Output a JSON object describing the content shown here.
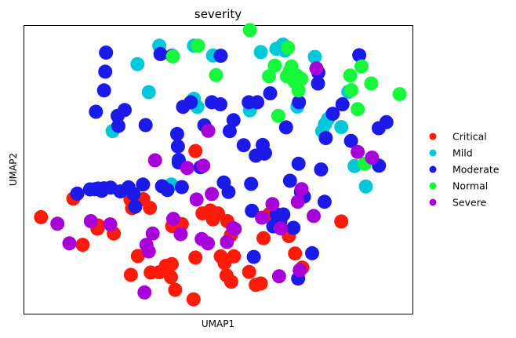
{
  "chart_data": {
    "type": "scatter",
    "title": "severity",
    "xlabel": "UMAP1",
    "ylabel": "UMAP2",
    "xlim": [
      0,
      100
    ],
    "ylim": [
      0,
      100
    ],
    "grid": false,
    "ticks_visible": false,
    "legend_position": "right",
    "series": [
      {
        "name": "Critical",
        "color": "#ff1a0a",
        "points": [
          [
            4.4,
            33.6
          ],
          [
            12.7,
            40.0
          ],
          [
            18.9,
            29.6
          ],
          [
            19.1,
            30.7
          ],
          [
            23.1,
            27.9
          ],
          [
            15.1,
            24.0
          ],
          [
            27.5,
            13.6
          ],
          [
            27.8,
            36.7
          ],
          [
            30.7,
            39.8
          ],
          [
            27.4,
            39.7
          ],
          [
            32.4,
            36.8
          ],
          [
            29.3,
            20.1
          ],
          [
            32.6,
            14.4
          ],
          [
            34.8,
            14.5
          ],
          [
            36.5,
            16.7
          ],
          [
            37.8,
            12.8
          ],
          [
            38.0,
            17.3
          ],
          [
            38.1,
            30.5
          ],
          [
            40.6,
            31.2
          ],
          [
            38.9,
            8.4
          ],
          [
            43.6,
            5.1
          ],
          [
            44.1,
            19.6
          ],
          [
            45.9,
            34.9
          ],
          [
            47.9,
            35.9
          ],
          [
            48.6,
            32.8
          ],
          [
            49.9,
            34.9
          ],
          [
            50.6,
            20.0
          ],
          [
            51.6,
            17.7
          ],
          [
            52.1,
            13.4
          ],
          [
            53.3,
            11.2
          ],
          [
            54.0,
            20.0
          ],
          [
            52.3,
            32.2
          ],
          [
            53.2,
            27.3
          ],
          [
            57.9,
            14.6
          ],
          [
            59.6,
            10.1
          ],
          [
            60.9,
            10.6
          ],
          [
            61.6,
            26.3
          ],
          [
            63.1,
            34.7
          ],
          [
            68.1,
            27.0
          ],
          [
            69.7,
            21.0
          ],
          [
            71.6,
            16.1
          ],
          [
            81.6,
            32.1
          ],
          [
            44.1,
            56.5
          ]
        ]
      },
      {
        "name": "Mild",
        "color": "#00c8d8",
        "points": [
          [
            29.2,
            86.6
          ],
          [
            32.1,
            76.9
          ],
          [
            34.8,
            93.0
          ],
          [
            43.7,
            74.6
          ],
          [
            44.6,
            71.8
          ],
          [
            43.7,
            93.0
          ],
          [
            48.6,
            89.6
          ],
          [
            58.1,
            70.6
          ],
          [
            60.9,
            90.8
          ],
          [
            64.9,
            91.9
          ],
          [
            66.6,
            93.4
          ],
          [
            67.1,
            91.3
          ],
          [
            70.3,
            71.9
          ],
          [
            74.8,
            89.1
          ],
          [
            76.7,
            63.4
          ],
          [
            77.4,
            65.8
          ],
          [
            78.2,
            67.6
          ],
          [
            81.6,
            64.8
          ],
          [
            83.4,
            77.0
          ],
          [
            85.0,
            51.3
          ],
          [
            87.9,
            44.2
          ],
          [
            37.9,
            44.9
          ],
          [
            22.8,
            63.4
          ]
        ]
      },
      {
        "name": "Moderate",
        "color": "#1b1ae8",
        "points": [
          [
            21.1,
            90.6
          ],
          [
            20.9,
            84.0
          ],
          [
            20.6,
            77.5
          ],
          [
            24.1,
            68.7
          ],
          [
            25.9,
            70.7
          ],
          [
            24.3,
            65.2
          ],
          [
            31.3,
            65.5
          ],
          [
            35.1,
            90.1
          ],
          [
            38.1,
            89.5
          ],
          [
            39.4,
            62.4
          ],
          [
            39.6,
            58.1
          ],
          [
            39.8,
            53.4
          ],
          [
            39.8,
            52.5
          ],
          [
            40.6,
            44.0
          ],
          [
            40.9,
            71.8
          ],
          [
            42.9,
            73.4
          ],
          [
            45.4,
            50.9
          ],
          [
            46.4,
            65.4
          ],
          [
            48.3,
            73.4
          ],
          [
            50.5,
            72.7
          ],
          [
            50.6,
            89.5
          ],
          [
            52.9,
            63.4
          ],
          [
            51.4,
            45.6
          ],
          [
            52.6,
            42.3
          ],
          [
            53.9,
            67.2
          ],
          [
            56.5,
            58.5
          ],
          [
            57.8,
            73.4
          ],
          [
            59.6,
            54.9
          ],
          [
            58.4,
            45.1
          ],
          [
            58.6,
            35.8
          ],
          [
            59.1,
            19.8
          ],
          [
            60.0,
            73.4
          ],
          [
            61.4,
            58.6
          ],
          [
            61.8,
            55.6
          ],
          [
            62.0,
            55.8
          ],
          [
            63.3,
            76.5
          ],
          [
            64.1,
            30.4
          ],
          [
            65.0,
            34.5
          ],
          [
            66.7,
            34.5
          ],
          [
            65.9,
            32.0
          ],
          [
            67.4,
            64.7
          ],
          [
            68.4,
            46.2
          ],
          [
            69.3,
            29.9
          ],
          [
            70.6,
            52.1
          ],
          [
            71.2,
            42.4
          ],
          [
            70.7,
            73.4
          ],
          [
            72.0,
            40.7
          ],
          [
            70.5,
            12.3
          ],
          [
            74.1,
            21.1
          ],
          [
            75.7,
            83.7
          ],
          [
            76.4,
            50.1
          ],
          [
            75.6,
            79.9
          ],
          [
            77.3,
            38.9
          ],
          [
            77.6,
            61.0
          ],
          [
            79.4,
            69.4
          ],
          [
            81.9,
            72.7
          ],
          [
            84.1,
            60.0
          ],
          [
            86.2,
            89.7
          ],
          [
            91.2,
            64.4
          ],
          [
            93.2,
            66.5
          ],
          [
            91.3,
            51.4
          ],
          [
            13.7,
            41.7
          ],
          [
            17.0,
            43.2
          ],
          [
            18.3,
            43.3
          ],
          [
            19.1,
            43.5
          ],
          [
            20.0,
            42.7
          ],
          [
            20.6,
            43.6
          ],
          [
            24.8,
            42.5
          ],
          [
            30.6,
            44.9
          ],
          [
            35.5,
            44.3
          ],
          [
            36.9,
            43.0
          ],
          [
            18.5,
            70.1
          ],
          [
            22.3,
            43.8
          ],
          [
            28.6,
            37.2
          ],
          [
            26.9,
            43.9
          ],
          [
            28.2,
            41.6
          ]
        ]
      },
      {
        "name": "Normal",
        "color": "#16f83a",
        "points": [
          [
            38.3,
            89.3
          ],
          [
            44.8,
            93.0
          ],
          [
            49.4,
            82.8
          ],
          [
            58.1,
            98.4
          ],
          [
            63.0,
            82.4
          ],
          [
            64.5,
            86.1
          ],
          [
            65.4,
            68.7
          ],
          [
            67.6,
            82.4
          ],
          [
            67.9,
            92.3
          ],
          [
            68.8,
            85.8
          ],
          [
            69.6,
            80.5
          ],
          [
            70.3,
            82.5
          ],
          [
            71.3,
            81.5
          ],
          [
            70.6,
            77.5
          ],
          [
            83.9,
            82.7
          ],
          [
            85.8,
            71.0
          ],
          [
            86.8,
            85.8
          ],
          [
            87.6,
            52.1
          ],
          [
            89.3,
            79.9
          ],
          [
            96.6,
            76.2
          ],
          [
            68.4,
            84.4
          ],
          [
            84.2,
            77.6
          ]
        ]
      },
      {
        "name": "Severe",
        "color": "#a800d8",
        "points": [
          [
            8.6,
            31.3
          ],
          [
            11.7,
            24.5
          ],
          [
            17.2,
            32.2
          ],
          [
            22.2,
            31.1
          ],
          [
            31.5,
            24.0
          ],
          [
            32.1,
            21.7
          ],
          [
            33.1,
            27.9
          ],
          [
            38.4,
            33.0
          ],
          [
            40.3,
            27.7
          ],
          [
            42.0,
            50.6
          ],
          [
            44.4,
            39.7
          ],
          [
            45.7,
            26.0
          ],
          [
            47.3,
            24.5
          ],
          [
            48.3,
            41.6
          ],
          [
            52.2,
            25.0
          ],
          [
            53.8,
            29.8
          ],
          [
            54.2,
            29.5
          ],
          [
            46.1,
            51.4
          ],
          [
            47.4,
            63.5
          ],
          [
            61.2,
            33.4
          ],
          [
            63.9,
            38.1
          ],
          [
            65.6,
            13.1
          ],
          [
            66.0,
            29.7
          ],
          [
            70.4,
            38.9
          ],
          [
            71.4,
            43.3
          ],
          [
            70.9,
            15.2
          ],
          [
            74.5,
            34.0
          ],
          [
            75.2,
            85.1
          ],
          [
            85.8,
            56.2
          ],
          [
            89.5,
            54.2
          ],
          [
            31.0,
            7.5
          ],
          [
            33.7,
            53.3
          ]
        ]
      }
    ]
  }
}
